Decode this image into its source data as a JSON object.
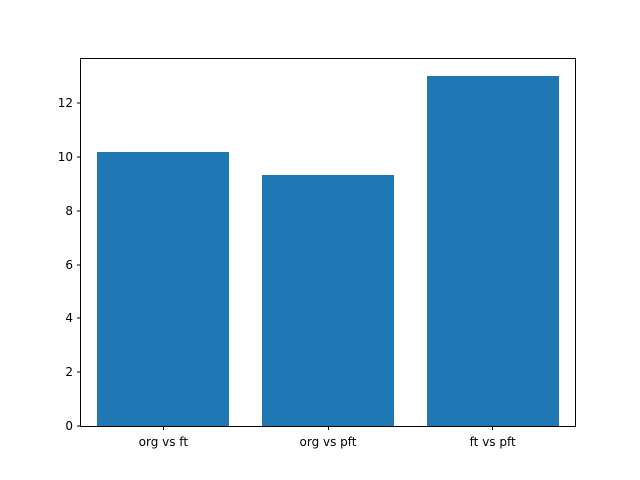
{
  "chart_data": {
    "type": "bar",
    "categories": [
      "org vs ft",
      "org vs pft",
      "ft vs pft"
    ],
    "values": [
      10.2,
      9.35,
      13.0
    ],
    "title": "",
    "xlabel": "",
    "ylabel": "",
    "ylim": [
      0,
      13.65
    ],
    "yticks": [
      0,
      2,
      4,
      6,
      8,
      10,
      12
    ],
    "bar_color": "#1f77b4",
    "axis_color": "#000000",
    "background_color": "#ffffff",
    "grid": false,
    "legend": null
  }
}
